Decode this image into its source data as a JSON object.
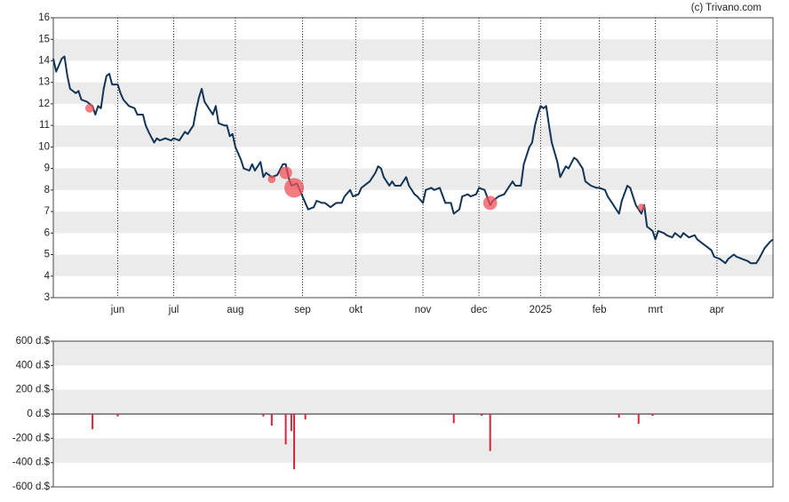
{
  "chart_data": [
    {
      "type": "line",
      "source": "(c) Trivano.com",
      "color": "#123456",
      "xlim": [
        0,
        257
      ],
      "xticks": [
        {
          "value": 23,
          "label": "jun"
        },
        {
          "value": 43,
          "label": "jul"
        },
        {
          "value": 65,
          "label": "aug"
        },
        {
          "value": 89,
          "label": "sep"
        },
        {
          "value": 108,
          "label": "okt"
        },
        {
          "value": 132,
          "label": "nov"
        },
        {
          "value": 152,
          "label": "dec"
        },
        {
          "value": 174,
          "label": "2025"
        },
        {
          "value": 195,
          "label": "feb"
        },
        {
          "value": 215,
          "label": "mrt"
        },
        {
          "value": 237,
          "label": "apr"
        }
      ],
      "ylim": [
        3,
        16
      ],
      "yticks": [
        3,
        4,
        5,
        6,
        7,
        8,
        9,
        10,
        11,
        12,
        13,
        14,
        15,
        16
      ],
      "grid": "bands",
      "xgrid": true,
      "x": [
        0,
        1,
        3,
        4,
        5,
        6,
        8,
        9,
        10,
        12,
        14,
        15,
        16,
        17,
        18,
        19,
        20,
        21,
        23,
        24,
        25,
        27,
        29,
        30,
        32,
        33,
        34,
        36,
        37,
        38,
        40,
        42,
        43,
        45,
        47,
        48,
        50,
        51,
        52,
        53,
        54,
        56,
        57,
        58,
        59,
        61,
        62,
        63,
        64,
        65,
        67,
        68,
        70,
        71,
        72,
        74,
        75,
        76,
        78,
        80,
        82,
        83,
        84,
        85,
        87,
        88,
        89,
        91,
        93,
        94,
        96,
        97,
        99,
        101,
        103,
        104,
        106,
        107,
        109,
        110,
        112,
        113,
        115,
        116,
        117,
        118,
        120,
        121,
        122,
        124,
        126,
        127,
        129,
        130,
        132,
        133,
        135,
        136,
        138,
        140,
        142,
        143,
        145,
        146,
        148,
        149,
        151,
        152,
        154,
        156,
        157,
        159,
        161,
        163,
        164,
        165,
        167,
        168,
        170,
        171,
        172,
        173,
        174,
        175,
        176,
        177,
        178,
        180,
        181,
        183,
        184,
        186,
        187,
        189,
        190,
        192,
        194,
        195,
        197,
        198,
        200,
        202,
        203,
        205,
        206,
        208,
        210,
        211,
        212,
        214,
        215,
        216,
        218,
        219,
        221,
        222,
        224,
        225,
        227,
        229,
        230,
        232,
        233,
        235,
        236,
        238,
        240,
        241,
        243,
        244,
        246,
        248,
        249,
        251,
        252,
        254,
        256,
        257
      ],
      "values": [
        14.1,
        13.5,
        14.1,
        14.2,
        13.3,
        12.7,
        12.5,
        12.6,
        12.2,
        12.1,
        11.9,
        11.5,
        11.9,
        11.8,
        12.7,
        13.3,
        13.4,
        12.9,
        12.9,
        12.5,
        12.2,
        11.9,
        11.8,
        11.5,
        11.5,
        11.0,
        10.7,
        10.2,
        10.4,
        10.3,
        10.4,
        10.3,
        10.4,
        10.3,
        10.7,
        10.6,
        11.0,
        11.7,
        12.3,
        12.7,
        12.1,
        11.7,
        11.5,
        11.9,
        11.1,
        11.0,
        11.0,
        10.5,
        10.6,
        10.0,
        9.4,
        9.0,
        8.9,
        9.2,
        8.9,
        9.3,
        8.6,
        8.8,
        8.6,
        8.7,
        9.2,
        9.2,
        8.6,
        8.2,
        8.3,
        8.0,
        7.7,
        7.1,
        7.2,
        7.5,
        7.4,
        7.4,
        7.2,
        7.4,
        7.4,
        7.7,
        8.0,
        7.7,
        7.8,
        8.1,
        8.3,
        8.4,
        8.8,
        9.1,
        9.0,
        8.6,
        8.2,
        8.4,
        8.2,
        8.2,
        8.6,
        8.2,
        7.8,
        7.7,
        7.4,
        8.0,
        8.1,
        8.0,
        8.1,
        7.4,
        7.4,
        6.9,
        7.1,
        7.7,
        7.8,
        7.7,
        7.8,
        8.1,
        8.0,
        7.3,
        7.5,
        7.7,
        7.8,
        8.2,
        8.4,
        8.2,
        8.2,
        9.2,
        10.0,
        10.2,
        11.0,
        11.5,
        11.9,
        11.8,
        11.9,
        11.0,
        10.2,
        9.3,
        8.6,
        9.1,
        9.0,
        9.5,
        9.4,
        9.0,
        8.4,
        8.2,
        8.1,
        8.1,
        8.0,
        7.7,
        7.3,
        6.9,
        7.5,
        8.2,
        8.1,
        7.3,
        6.9,
        7.3,
        6.3,
        6.1,
        5.7,
        6.1,
        6.0,
        5.9,
        5.8,
        6.0,
        5.8,
        6.0,
        5.8,
        5.9,
        5.7,
        5.5,
        5.4,
        5.2,
        4.9,
        4.8,
        4.6,
        4.8,
        5.0,
        4.9,
        4.8,
        4.7,
        4.6,
        4.6,
        4.8,
        5.3,
        5.6,
        5.7
      ],
      "bubbles": {
        "color": "#f0505a",
        "x": [
          13,
          78,
          83,
          86,
          156,
          210
        ],
        "values": [
          11.8,
          8.5,
          8.8,
          8.1,
          7.4,
          7.2
        ],
        "sizes": [
          125,
          95,
          250,
          600,
          305,
          80
        ]
      }
    },
    {
      "type": "bar",
      "color": "#d9233a",
      "grid": "bands",
      "xgrid": false,
      "xlim": [
        0,
        257
      ],
      "ylim": [
        -600,
        600
      ],
      "yticks": [
        {
          "value": -600,
          "label": "-600 d.$"
        },
        {
          "value": -400,
          "label": "-400 d.$"
        },
        {
          "value": -200,
          "label": "-200 d.$"
        },
        {
          "value": 0,
          "label": "0 d.$"
        },
        {
          "value": 200,
          "label": "200 d.$"
        },
        {
          "value": 400,
          "label": "400 d.$"
        },
        {
          "value": 600,
          "label": "600 d.$"
        }
      ],
      "x": [
        14,
        23,
        75,
        78,
        83,
        85,
        86,
        90,
        143,
        153,
        156,
        202,
        209,
        214
      ],
      "values": [
        -125,
        -20,
        -20,
        -95,
        -250,
        -140,
        -455,
        -45,
        -75,
        -15,
        -305,
        -30,
        -80,
        -15
      ]
    }
  ]
}
